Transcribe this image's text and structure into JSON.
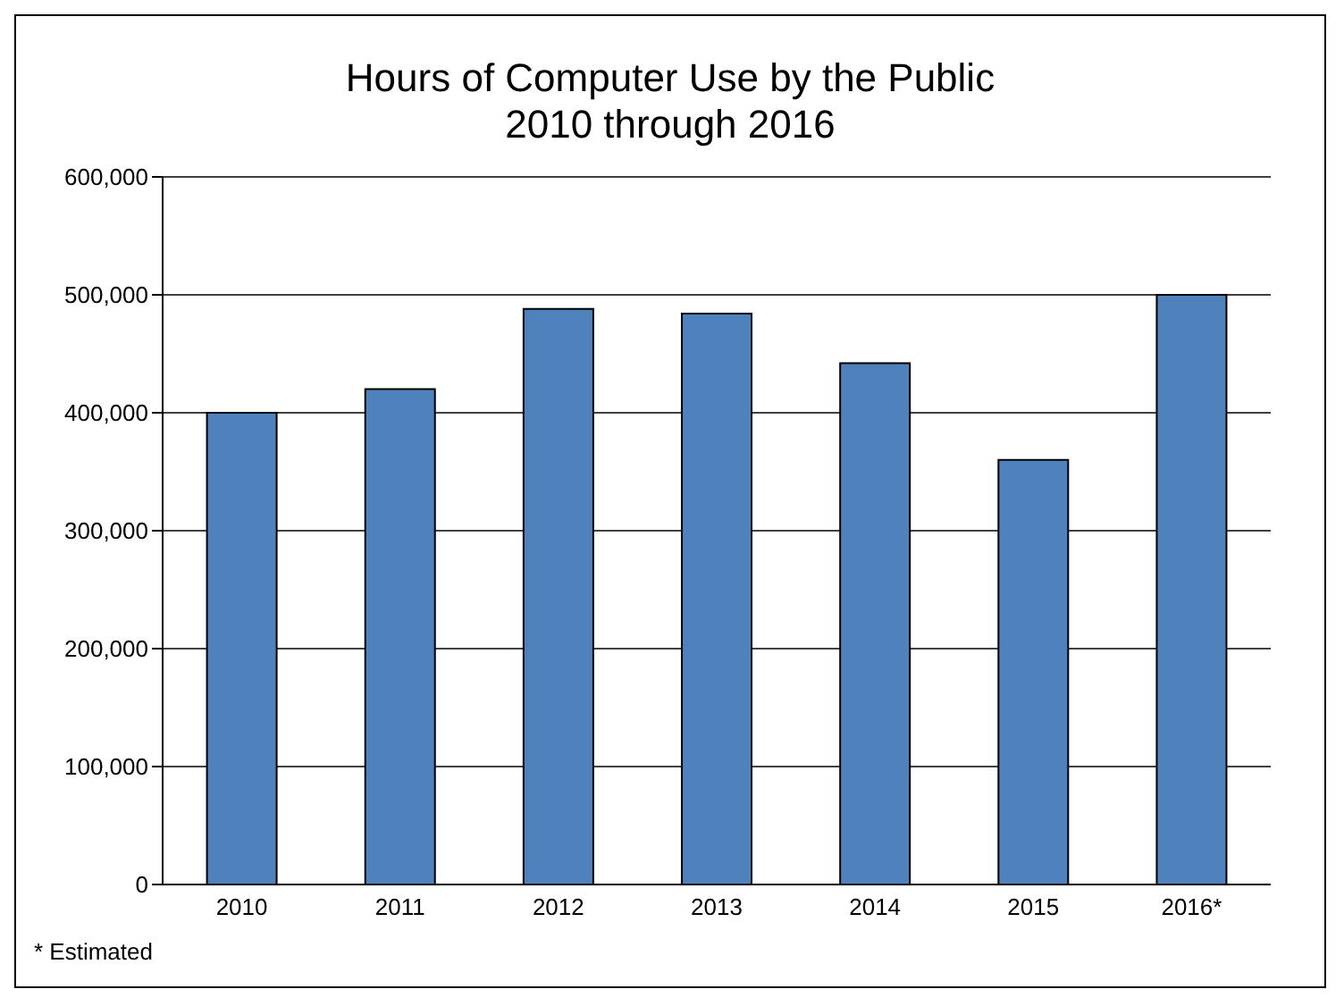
{
  "chart_data": {
    "type": "bar",
    "title": "Hours of Computer Use by the Public\n2010 through 2016",
    "categories": [
      "2010",
      "2011",
      "2012",
      "2013",
      "2014",
      "2015",
      "2016*"
    ],
    "values": [
      400000,
      420000,
      488000,
      484000,
      442000,
      360000,
      500000
    ],
    "color": "#4f81bd",
    "ylim": [
      0,
      600000
    ],
    "yticks": [
      0,
      {
        "value": 100000,
        "label": "100,000"
      },
      {
        "value": 200000,
        "label": "200,000"
      },
      {
        "value": 300000,
        "label": "300,000"
      },
      {
        "value": 400000,
        "label": "400,000"
      },
      {
        "value": 500000,
        "label": "500,000"
      },
      {
        "value": 600000,
        "label": "600,000"
      }
    ],
    "grid": "y",
    "annotations": [
      "* Estimated"
    ]
  }
}
